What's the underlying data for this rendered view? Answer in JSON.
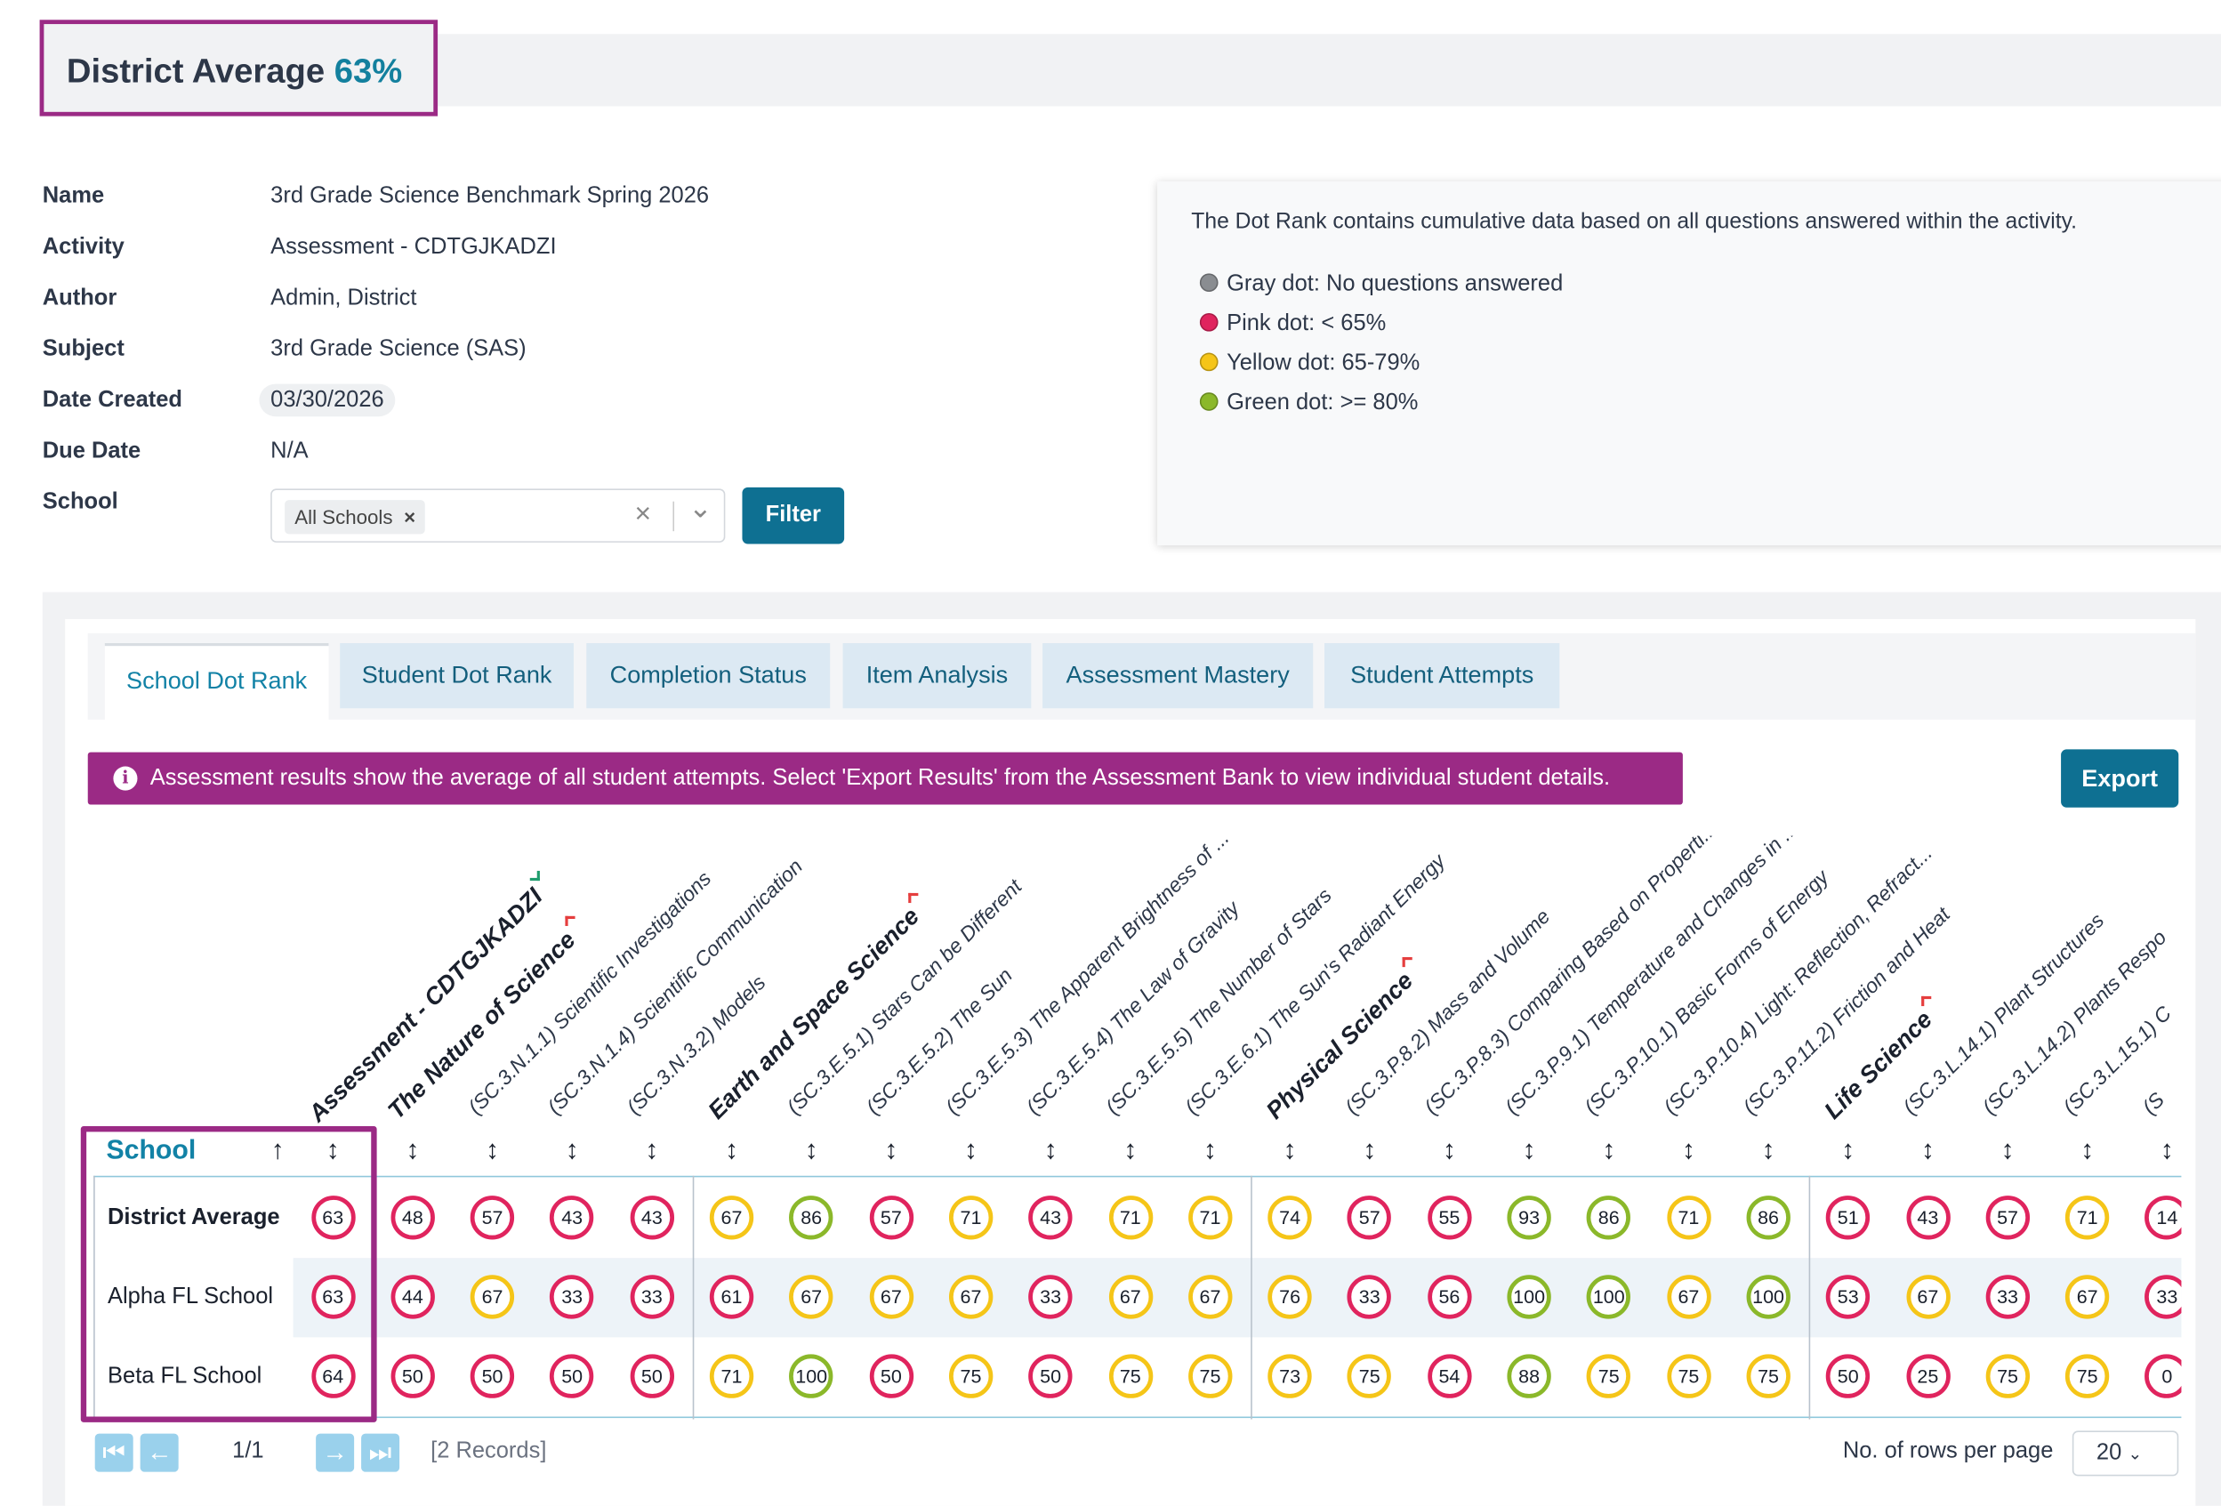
{
  "district_average": {
    "label": "District Average",
    "value": "63%"
  },
  "details": [
    {
      "label": "Name",
      "value": "3rd Grade Science Benchmark Spring 2026"
    },
    {
      "label": "Activity",
      "value": "Assessment - CDTGJKADZI"
    },
    {
      "label": "Author",
      "value": "Admin, District"
    },
    {
      "label": "Subject",
      "value": "3rd Grade Science (SAS)"
    },
    {
      "label": "Date Created",
      "value": "03/30/2026"
    },
    {
      "label": "Due Date",
      "value": "N/A"
    },
    {
      "label": "School",
      "value": ""
    }
  ],
  "school_select": {
    "tag": "All Schools",
    "tag_remove": "×",
    "clear": "×",
    "chevron": "⌄"
  },
  "filter_label": "Filter",
  "legend": {
    "intro": "The Dot Rank contains cumulative data based on all questions answered within the activity.",
    "items": [
      {
        "text": "Gray dot: No questions answered",
        "color": "#8a8d91"
      },
      {
        "text": "Pink dot: < 65%",
        "color": "#e0245e"
      },
      {
        "text": "Yellow dot: 65-79%",
        "color": "#f5c518"
      },
      {
        "text": "Green dot: >= 80%",
        "color": "#8bb82a"
      }
    ]
  },
  "tabs": [
    {
      "label": "School Dot Rank",
      "active": true
    },
    {
      "label": "Student Dot Rank"
    },
    {
      "label": "Completion Status"
    },
    {
      "label": "Item Analysis"
    },
    {
      "label": "Assessment Mastery"
    },
    {
      "label": "Student Attempts"
    }
  ],
  "banner": {
    "icon": "i",
    "text": "Assessment results show the average of all student attempts. Select 'Export Results' from the Assessment Bank to view individual student details."
  },
  "export_label": "Export",
  "colors": {
    "pink": "#e0245e",
    "yellow": "#f5c518",
    "green": "#8bb82a",
    "accent": "#9b2a85",
    "teal": "#0e7092"
  },
  "table": {
    "school_header": "School",
    "sort_up": "↑",
    "sort_both": "↕",
    "columns": [
      {
        "label": "Assessment - CDTGJKADZI",
        "group": true,
        "flag": "green"
      },
      {
        "label": "The Nature of Science",
        "group": true,
        "flag": "red"
      },
      {
        "label": "(SC.3.N.1.1) Scientific Investigations"
      },
      {
        "label": "(SC.3.N.1.4) Scientific Communication"
      },
      {
        "label": "(SC.3.N.3.2) Models"
      },
      {
        "label": "Earth and Space Science",
        "group": true,
        "flag": "red"
      },
      {
        "label": "(SC.3.E.5.1) Stars Can be Different"
      },
      {
        "label": "(SC.3.E.5.2) The Sun"
      },
      {
        "label": "(SC.3.E.5.3) The Apparent Brightness of ..."
      },
      {
        "label": "(SC.3.E.5.4) The Law of Gravity"
      },
      {
        "label": "(SC.3.E.5.5) The Number of Stars"
      },
      {
        "label": "(SC.3.E.6.1) The Sun's Radiant Energy"
      },
      {
        "label": "Physical Science",
        "group": true,
        "flag": "red"
      },
      {
        "label": "(SC.3.P.8.2) Mass and Volume"
      },
      {
        "label": "(SC.3.P.8.3) Comparing Based on Properti..."
      },
      {
        "label": "(SC.3.P.9.1) Temperature and Changes in ..."
      },
      {
        "label": "(SC.3.P.10.1) Basic Forms of Energy"
      },
      {
        "label": "(SC.3.P.10.4) Light: Reflection,  Refract..."
      },
      {
        "label": "(SC.3.P.11.2) Friction and Heat"
      },
      {
        "label": "Life Science",
        "group": true,
        "flag": "red"
      },
      {
        "label": "(SC.3.L.14.1) Plant Structures"
      },
      {
        "label": "(SC.3.L.14.2) Plants Respo"
      },
      {
        "label": "(SC.3.L.15.1) C"
      },
      {
        "label": "(S"
      }
    ],
    "rows": [
      {
        "name": "District Average",
        "bold": true,
        "values": [
          63,
          48,
          57,
          43,
          43,
          67,
          86,
          57,
          71,
          43,
          71,
          71,
          74,
          57,
          55,
          93,
          86,
          71,
          86,
          51,
          43,
          57,
          71,
          14
        ]
      },
      {
        "name": "Alpha FL School",
        "values": [
          63,
          44,
          67,
          33,
          33,
          61,
          67,
          67,
          67,
          33,
          67,
          67,
          76,
          33,
          56,
          100,
          100,
          67,
          100,
          53,
          67,
          33,
          67,
          33
        ]
      },
      {
        "name": "Beta FL School",
        "values": [
          64,
          50,
          50,
          50,
          50,
          71,
          100,
          50,
          75,
          50,
          75,
          75,
          73,
          75,
          54,
          88,
          75,
          75,
          75,
          50,
          25,
          75,
          75,
          0
        ]
      }
    ]
  },
  "pagination": {
    "first": "⏮",
    "prev": "←",
    "page": "1/1",
    "next": "→",
    "last": "⏭",
    "records": "[2 Records]",
    "rows_label": "No. of rows per page",
    "rows_value": "20"
  }
}
